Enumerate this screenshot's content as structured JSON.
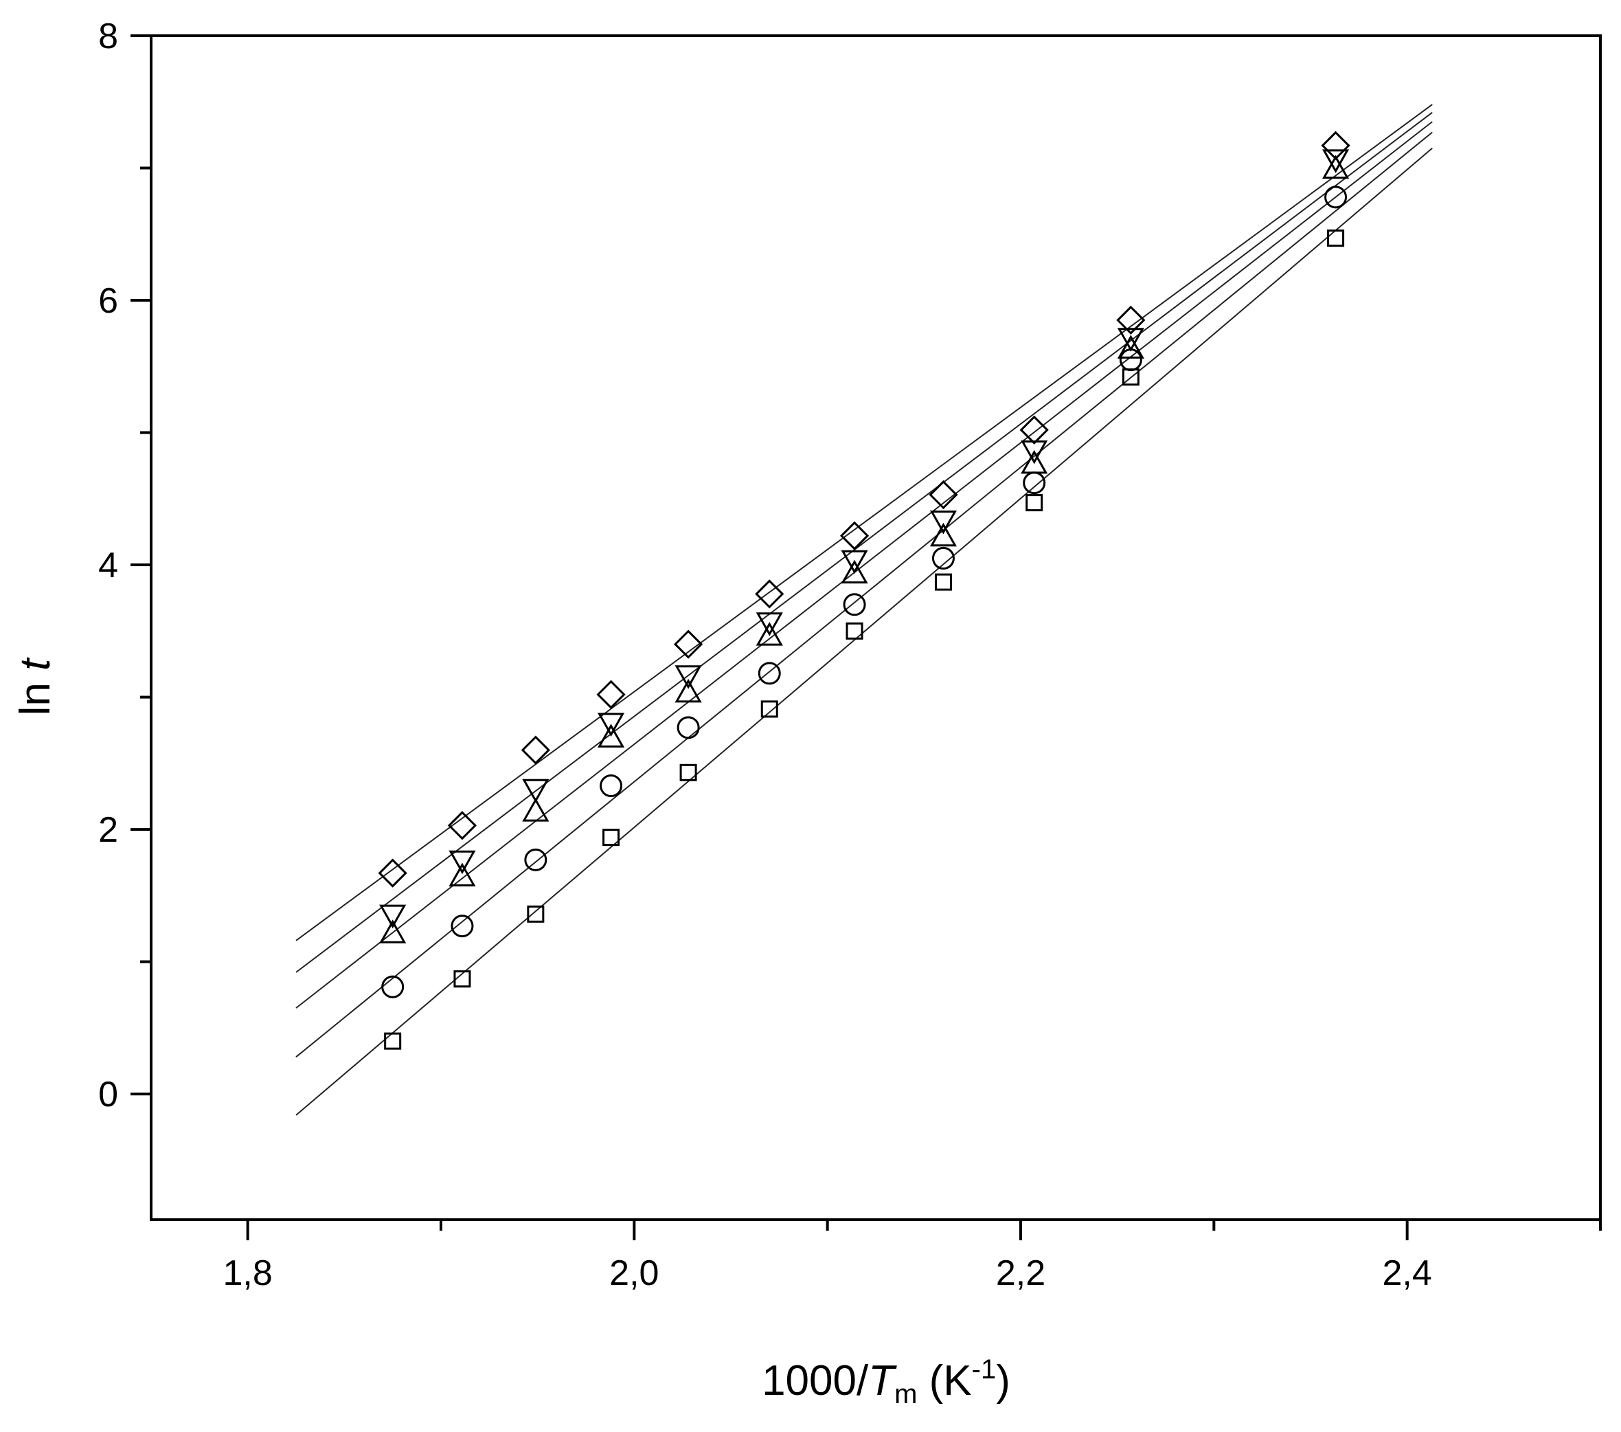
{
  "chart_data": {
    "type": "scatter",
    "title": "",
    "xlabel": {
      "prefix": "1000/",
      "var": "T",
      "sub": "m",
      "unit_open": " (K",
      "sup": "-1",
      "unit_close": ")"
    },
    "ylabel": {
      "prefix": "ln ",
      "var": "t"
    },
    "xlim": [
      1.75,
      2.5
    ],
    "ylim": [
      -0.95,
      8
    ],
    "x_ticks": [
      1.8,
      2.0,
      2.2,
      2.4
    ],
    "x_tick_labels": [
      "1,8",
      "2,0",
      "2,2",
      "2,4"
    ],
    "x_minor_ticks": [
      1.9,
      2.1,
      2.3,
      2.5
    ],
    "y_ticks": [
      0,
      2,
      4,
      6,
      8
    ],
    "y_tick_labels": [
      "0",
      "2",
      "4",
      "6",
      "8"
    ],
    "y_minor_ticks": [
      1,
      3,
      5,
      7
    ],
    "grid": false,
    "legend": "none",
    "x": [
      1.875,
      1.911,
      1.949,
      1.988,
      2.028,
      2.07,
      2.114,
      2.16,
      2.207,
      2.257,
      2.363
    ],
    "series": [
      {
        "marker": "square",
        "values": [
          0.4,
          0.87,
          1.36,
          1.94,
          2.43,
          2.91,
          3.5,
          3.87,
          4.47,
          5.42,
          6.47
        ],
        "fit": {
          "x0": 1.825,
          "y0": -0.16,
          "x1": 2.413,
          "y1": 7.15
        }
      },
      {
        "marker": "circle",
        "values": [
          0.81,
          1.27,
          1.77,
          2.33,
          2.77,
          3.18,
          3.7,
          4.05,
          4.62,
          5.55,
          6.78
        ],
        "fit": {
          "x0": 1.825,
          "y0": 0.28,
          "x1": 2.413,
          "y1": 7.27
        }
      },
      {
        "marker": "triangle-up",
        "values": [
          1.2,
          1.63,
          2.12,
          2.68,
          3.02,
          3.45,
          3.92,
          4.2,
          4.75,
          5.62,
          6.98
        ],
        "fit": {
          "x0": 1.825,
          "y0": 0.65,
          "x1": 2.413,
          "y1": 7.35
        }
      },
      {
        "marker": "triangle-down",
        "values": [
          1.37,
          1.78,
          2.32,
          2.82,
          3.18,
          3.58,
          4.05,
          4.35,
          4.88,
          5.73,
          7.08
        ],
        "fit": {
          "x0": 1.825,
          "y0": 0.92,
          "x1": 2.413,
          "y1": 7.42
        }
      },
      {
        "marker": "diamond",
        "values": [
          1.67,
          2.03,
          2.6,
          3.02,
          3.4,
          3.78,
          4.22,
          4.53,
          5.02,
          5.85,
          7.17
        ],
        "fit": {
          "x0": 1.825,
          "y0": 1.16,
          "x1": 2.413,
          "y1": 7.48
        }
      }
    ]
  }
}
